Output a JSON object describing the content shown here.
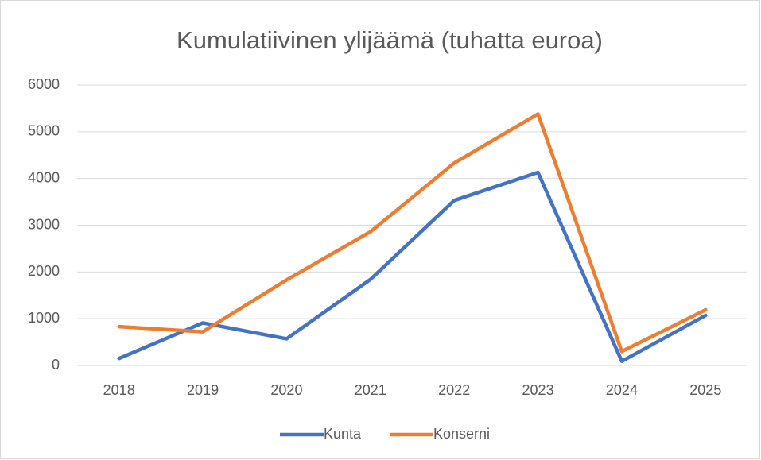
{
  "chart_data": {
    "type": "line",
    "title": "Kumulatiivinen ylijäämä (tuhatta euroa)",
    "categories": [
      "2018",
      "2019",
      "2020",
      "2021",
      "2022",
      "2023",
      "2024",
      "2025"
    ],
    "series": [
      {
        "name": "Kunta",
        "color": "#4472c4",
        "values": [
          150,
          910,
          570,
          1840,
          3530,
          4130,
          90,
          1070
        ]
      },
      {
        "name": "Konserni",
        "color": "#ed7d31",
        "values": [
          830,
          720,
          1830,
          2860,
          4330,
          5380,
          300,
          1190
        ]
      }
    ],
    "ylim": [
      0,
      6000
    ],
    "yticks": [
      0,
      1000,
      2000,
      3000,
      4000,
      5000,
      6000
    ],
    "grid": true,
    "legend": "bottom"
  }
}
